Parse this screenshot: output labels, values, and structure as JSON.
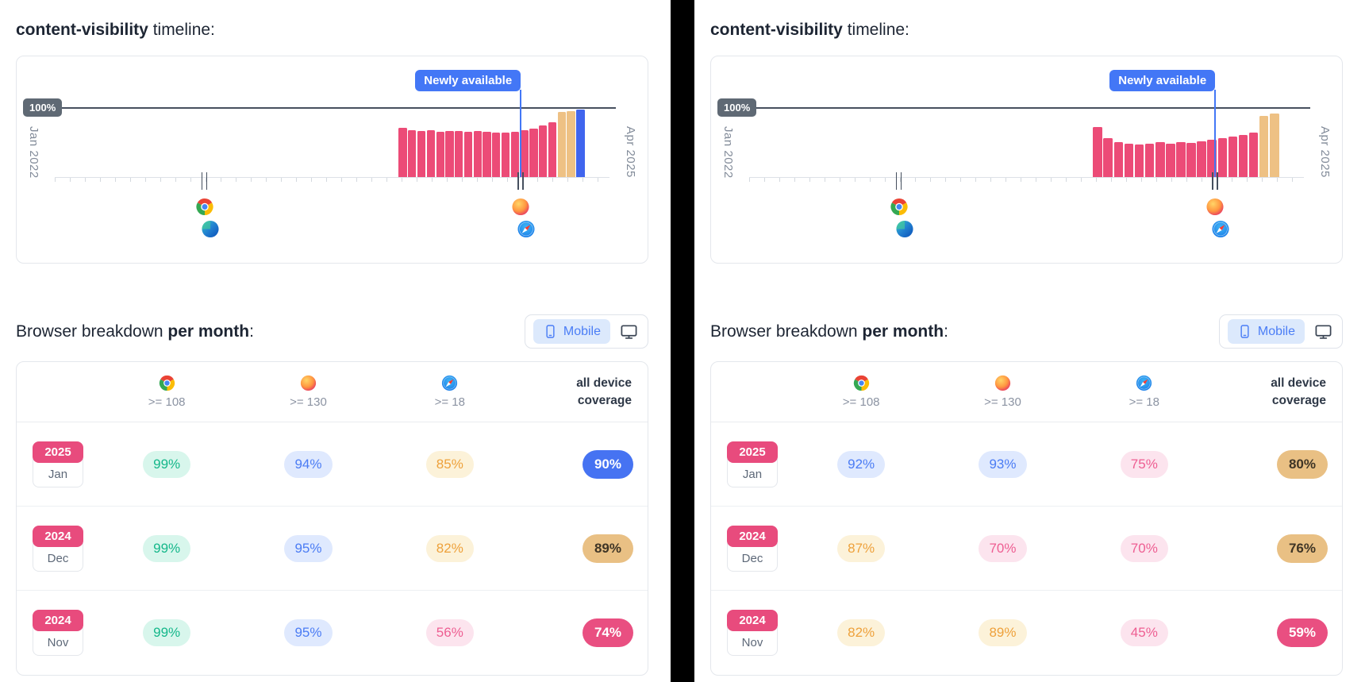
{
  "colors": {
    "pink": "#ec4b77",
    "tan": "#eec184",
    "blue": "#4065ee"
  },
  "panels": [
    {
      "title_code": "content-visibility",
      "title_rest": " timeline:",
      "timeline": {
        "hundred_label": "100%",
        "newly_available_label": "Newly available",
        "newly_line_pos": 84,
        "start_label": "Jan 2022",
        "end_label": "Apr 2025",
        "markers": [
          {
            "pos": 27,
            "icons": [
              "chrome",
              "edge"
            ]
          },
          {
            "pos": 84,
            "icons": [
              "firefox",
              "safari"
            ]
          }
        ],
        "chart_data": {
          "type": "bar",
          "title": "content-visibility support timeline (desktop panel)",
          "x_range": [
            "Jan 2022",
            "Apr 2025"
          ],
          "ylim": [
            0,
            100
          ],
          "bars": [
            {
              "v": 70,
              "c": "pink"
            },
            {
              "v": 67,
              "c": "pink"
            },
            {
              "v": 66,
              "c": "pink"
            },
            {
              "v": 67,
              "c": "pink"
            },
            {
              "v": 65,
              "c": "pink"
            },
            {
              "v": 66,
              "c": "pink"
            },
            {
              "v": 66,
              "c": "pink"
            },
            {
              "v": 65,
              "c": "pink"
            },
            {
              "v": 66,
              "c": "pink"
            },
            {
              "v": 65,
              "c": "pink"
            },
            {
              "v": 64,
              "c": "pink"
            },
            {
              "v": 64,
              "c": "pink"
            },
            {
              "v": 65,
              "c": "pink"
            },
            {
              "v": 67,
              "c": "pink"
            },
            {
              "v": 69,
              "c": "pink"
            },
            {
              "v": 74,
              "c": "pink"
            },
            {
              "v": 78,
              "c": "pink"
            },
            {
              "v": 93,
              "c": "tan"
            },
            {
              "v": 94,
              "c": "tan"
            },
            {
              "v": 97,
              "c": "blue"
            }
          ]
        }
      },
      "breakdown": {
        "heading_normal": "Browser breakdown ",
        "heading_bold": "per month",
        "heading_suffix": ":",
        "toggle": {
          "mobile_label": "Mobile"
        },
        "columns": [
          {
            "browser": "chrome",
            "version": ">= 108"
          },
          {
            "browser": "firefox",
            "version": ">= 130"
          },
          {
            "browser": "safari",
            "version": ">= 18"
          }
        ],
        "coverage_label_line1": "all device",
        "coverage_label_line2": "coverage",
        "rows": [
          {
            "year": "2025",
            "month": "Jan",
            "cells": [
              {
                "value": "99%",
                "tone": "green"
              },
              {
                "value": "94%",
                "tone": "blue"
              },
              {
                "value": "85%",
                "tone": "orange"
              }
            ],
            "coverage": {
              "value": "90%",
              "tone": "blue-solid"
            }
          },
          {
            "year": "2024",
            "month": "Dec",
            "cells": [
              {
                "value": "99%",
                "tone": "green"
              },
              {
                "value": "95%",
                "tone": "blue"
              },
              {
                "value": "82%",
                "tone": "orange"
              }
            ],
            "coverage": {
              "value": "89%",
              "tone": "tan"
            }
          },
          {
            "year": "2024",
            "month": "Nov",
            "cells": [
              {
                "value": "99%",
                "tone": "green"
              },
              {
                "value": "95%",
                "tone": "blue"
              },
              {
                "value": "56%",
                "tone": "pink"
              }
            ],
            "coverage": {
              "value": "74%",
              "tone": "pink-solid"
            }
          }
        ]
      }
    },
    {
      "title_code": "content-visibility",
      "title_rest": " timeline:",
      "timeline": {
        "hundred_label": "100%",
        "newly_available_label": "Newly available",
        "newly_line_pos": 84,
        "start_label": "Jan 2022",
        "end_label": "Apr 2025",
        "markers": [
          {
            "pos": 27,
            "icons": [
              "chrome",
              "edge"
            ]
          },
          {
            "pos": 84,
            "icons": [
              "firefox",
              "safari"
            ]
          }
        ],
        "chart_data": {
          "type": "bar",
          "title": "content-visibility support timeline (mobile panel)",
          "x_range": [
            "Jan 2022",
            "Apr 2025"
          ],
          "ylim": [
            0,
            100
          ],
          "bars": [
            {
              "v": 72,
              "c": "pink"
            },
            {
              "v": 56,
              "c": "pink"
            },
            {
              "v": 50,
              "c": "pink"
            },
            {
              "v": 48,
              "c": "pink"
            },
            {
              "v": 47,
              "c": "pink"
            },
            {
              "v": 48,
              "c": "pink"
            },
            {
              "v": 50,
              "c": "pink"
            },
            {
              "v": 48,
              "c": "pink"
            },
            {
              "v": 50,
              "c": "pink"
            },
            {
              "v": 49,
              "c": "pink"
            },
            {
              "v": 51,
              "c": "pink"
            },
            {
              "v": 53,
              "c": "pink"
            },
            {
              "v": 56,
              "c": "pink"
            },
            {
              "v": 58,
              "c": "pink"
            },
            {
              "v": 60,
              "c": "pink"
            },
            {
              "v": 64,
              "c": "pink"
            },
            {
              "v": 88,
              "c": "tan"
            },
            {
              "v": 91,
              "c": "tan"
            }
          ]
        }
      },
      "breakdown": {
        "heading_normal": "Browser breakdown ",
        "heading_bold": "per month",
        "heading_suffix": ":",
        "toggle": {
          "mobile_label": "Mobile"
        },
        "columns": [
          {
            "browser": "chrome",
            "version": ">= 108"
          },
          {
            "browser": "firefox",
            "version": ">= 130"
          },
          {
            "browser": "safari",
            "version": ">= 18"
          }
        ],
        "coverage_label_line1": "all device",
        "coverage_label_line2": "coverage",
        "rows": [
          {
            "year": "2025",
            "month": "Jan",
            "cells": [
              {
                "value": "92%",
                "tone": "blue"
              },
              {
                "value": "93%",
                "tone": "blue"
              },
              {
                "value": "75%",
                "tone": "pink"
              }
            ],
            "coverage": {
              "value": "80%",
              "tone": "tan"
            }
          },
          {
            "year": "2024",
            "month": "Dec",
            "cells": [
              {
                "value": "87%",
                "tone": "orange"
              },
              {
                "value": "70%",
                "tone": "pink"
              },
              {
                "value": "70%",
                "tone": "pink"
              }
            ],
            "coverage": {
              "value": "76%",
              "tone": "tan"
            }
          },
          {
            "year": "2024",
            "month": "Nov",
            "cells": [
              {
                "value": "82%",
                "tone": "orange"
              },
              {
                "value": "89%",
                "tone": "orange"
              },
              {
                "value": "45%",
                "tone": "pink"
              }
            ],
            "coverage": {
              "value": "59%",
              "tone": "pink-solid"
            }
          }
        ]
      }
    }
  ]
}
